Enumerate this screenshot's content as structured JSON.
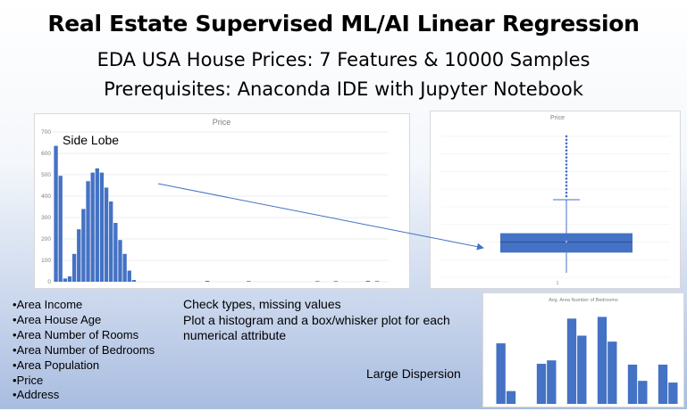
{
  "slide": {
    "title": "Real Estate Supervised ML/AI Linear Regression",
    "subtitle_1": "EDA USA House Prices: 7 Features & 10000 Samples",
    "subtitle_2": "Prerequisites: Anaconda IDE with Jupyter Notebook",
    "features": [
      "Area Income",
      "Area House Age",
      "Area Number of Rooms",
      "Area Number of Bedrooms",
      "Area Population",
      "Price",
      "Address"
    ],
    "notes": [
      "Check types, missing values",
      "Plot a histogram and a box/whisker plot for each numerical attribute"
    ],
    "annotation_side_lobe": "Side Lobe",
    "annotation_dispersion": "Large Dispersion"
  },
  "colors": {
    "bar": "#4472c4",
    "grid": "#e6e6e6",
    "axis_text": "#7f7f7f",
    "arrow": "#4472c4"
  },
  "chart_data": [
    {
      "type": "bar",
      "title": "Price",
      "ylim": [
        0,
        700
      ],
      "yticks": [
        0,
        100,
        200,
        300,
        400,
        500,
        600,
        700
      ],
      "values": [
        635,
        495,
        15,
        25,
        130,
        245,
        340,
        470,
        510,
        530,
        510,
        440,
        375,
        275,
        195,
        130,
        52,
        8,
        0,
        0,
        0,
        0,
        0,
        0,
        0,
        0,
        0,
        0,
        0,
        0,
        0,
        0,
        0,
        4,
        0,
        0,
        0,
        0,
        0,
        0,
        0,
        0,
        3,
        0,
        0,
        0,
        0,
        0,
        0,
        0,
        0,
        0,
        0,
        0,
        0,
        0,
        0,
        3,
        0,
        0,
        0,
        3,
        0,
        0,
        0,
        0,
        0,
        0,
        4,
        0,
        3,
        0,
        0
      ]
    },
    {
      "type": "box",
      "title": "Price",
      "xlabel": "1",
      "q1": 28,
      "median": 40,
      "q3": 50,
      "whisker_low": 5,
      "whisker_high": 88,
      "outliers": [
        92,
        96,
        100,
        104,
        108,
        112,
        116,
        120,
        124,
        128,
        132,
        136,
        140,
        144,
        148,
        152,
        156,
        160
      ],
      "ylim": [
        0,
        170
      ]
    },
    {
      "type": "bar",
      "title": "Avg. Area Number of Bedrooms",
      "values": [
        71,
        15,
        0,
        0,
        47,
        51,
        0,
        100,
        80,
        0,
        102,
        73,
        0,
        46,
        27,
        0,
        46,
        25
      ],
      "ylim": [
        0,
        115
      ]
    }
  ]
}
